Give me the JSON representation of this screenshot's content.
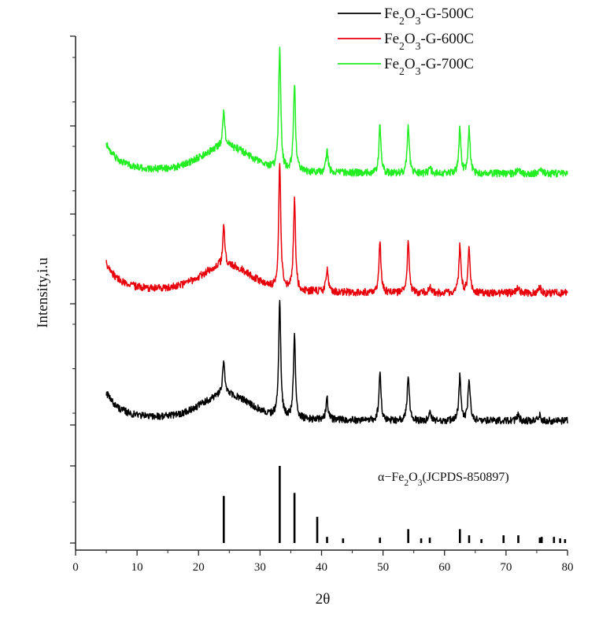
{
  "chart_data": {
    "type": "line",
    "title": "",
    "xlabel": "2θ",
    "ylabel": "Intensity,i.u",
    "xlim": [
      0,
      80
    ],
    "xticks": [
      0,
      10,
      20,
      30,
      40,
      50,
      60,
      70,
      80
    ],
    "y_tick_labels": "none",
    "grid": false,
    "legend_position": "top-right",
    "legend": [
      {
        "name_parts": [
          "Fe",
          "2",
          "O",
          "3",
          "-G-500C"
        ],
        "color": "#000000"
      },
      {
        "name_parts": [
          "Fe",
          "2",
          "O",
          "3",
          "-G-600C"
        ],
        "color": "#e8000b"
      },
      {
        "name_parts": [
          "Fe",
          "2",
          "O",
          "3",
          "-G-700C"
        ],
        "color": "#22ee22"
      }
    ],
    "series": [
      {
        "name": "Fe2O3-G-500C",
        "color": "#000000",
        "offset": 0.0
      },
      {
        "name": "Fe2O3-G-600C",
        "color": "#e8000b",
        "offset": 1.0
      },
      {
        "name": "Fe2O3-G-700C",
        "color": "#22ee22",
        "offset": 2.0
      }
    ],
    "xrd_peaks": [
      {
        "two_theta": 24.1,
        "intensity": 0.3
      },
      {
        "two_theta": 33.2,
        "intensity": 1.0
      },
      {
        "two_theta": 35.6,
        "intensity": 0.72
      },
      {
        "two_theta": 40.9,
        "intensity": 0.18
      },
      {
        "two_theta": 49.5,
        "intensity": 0.4
      },
      {
        "two_theta": 54.1,
        "intensity": 0.4
      },
      {
        "two_theta": 57.6,
        "intensity": 0.06
      },
      {
        "two_theta": 62.5,
        "intensity": 0.38
      },
      {
        "two_theta": 64.0,
        "intensity": 0.36
      },
      {
        "two_theta": 72.0,
        "intensity": 0.05
      },
      {
        "two_theta": 75.5,
        "intensity": 0.05
      }
    ],
    "reference": {
      "label_parts": [
        "α−Fe",
        "2",
        "O",
        "3",
        "(JCPDS-850897)"
      ],
      "color": "#000000",
      "lines": [
        {
          "two_theta": 24.1,
          "intensity": 0.61
        },
        {
          "two_theta": 33.2,
          "intensity": 1.0
        },
        {
          "two_theta": 35.6,
          "intensity": 0.65
        },
        {
          "two_theta": 39.3,
          "intensity": 0.34
        },
        {
          "two_theta": 40.9,
          "intensity": 0.08
        },
        {
          "two_theta": 43.5,
          "intensity": 0.06
        },
        {
          "two_theta": 49.5,
          "intensity": 0.07
        },
        {
          "two_theta": 54.1,
          "intensity": 0.18
        },
        {
          "two_theta": 56.2,
          "intensity": 0.06
        },
        {
          "two_theta": 57.6,
          "intensity": 0.07
        },
        {
          "two_theta": 62.5,
          "intensity": 0.18
        },
        {
          "two_theta": 64.0,
          "intensity": 0.1
        },
        {
          "two_theta": 66.0,
          "intensity": 0.05
        },
        {
          "two_theta": 69.6,
          "intensity": 0.1
        },
        {
          "two_theta": 72.0,
          "intensity": 0.1
        },
        {
          "two_theta": 75.5,
          "intensity": 0.07
        },
        {
          "two_theta": 75.8,
          "intensity": 0.08
        },
        {
          "two_theta": 77.8,
          "intensity": 0.08
        },
        {
          "two_theta": 78.8,
          "intensity": 0.06
        },
        {
          "two_theta": 79.6,
          "intensity": 0.05
        }
      ]
    }
  }
}
